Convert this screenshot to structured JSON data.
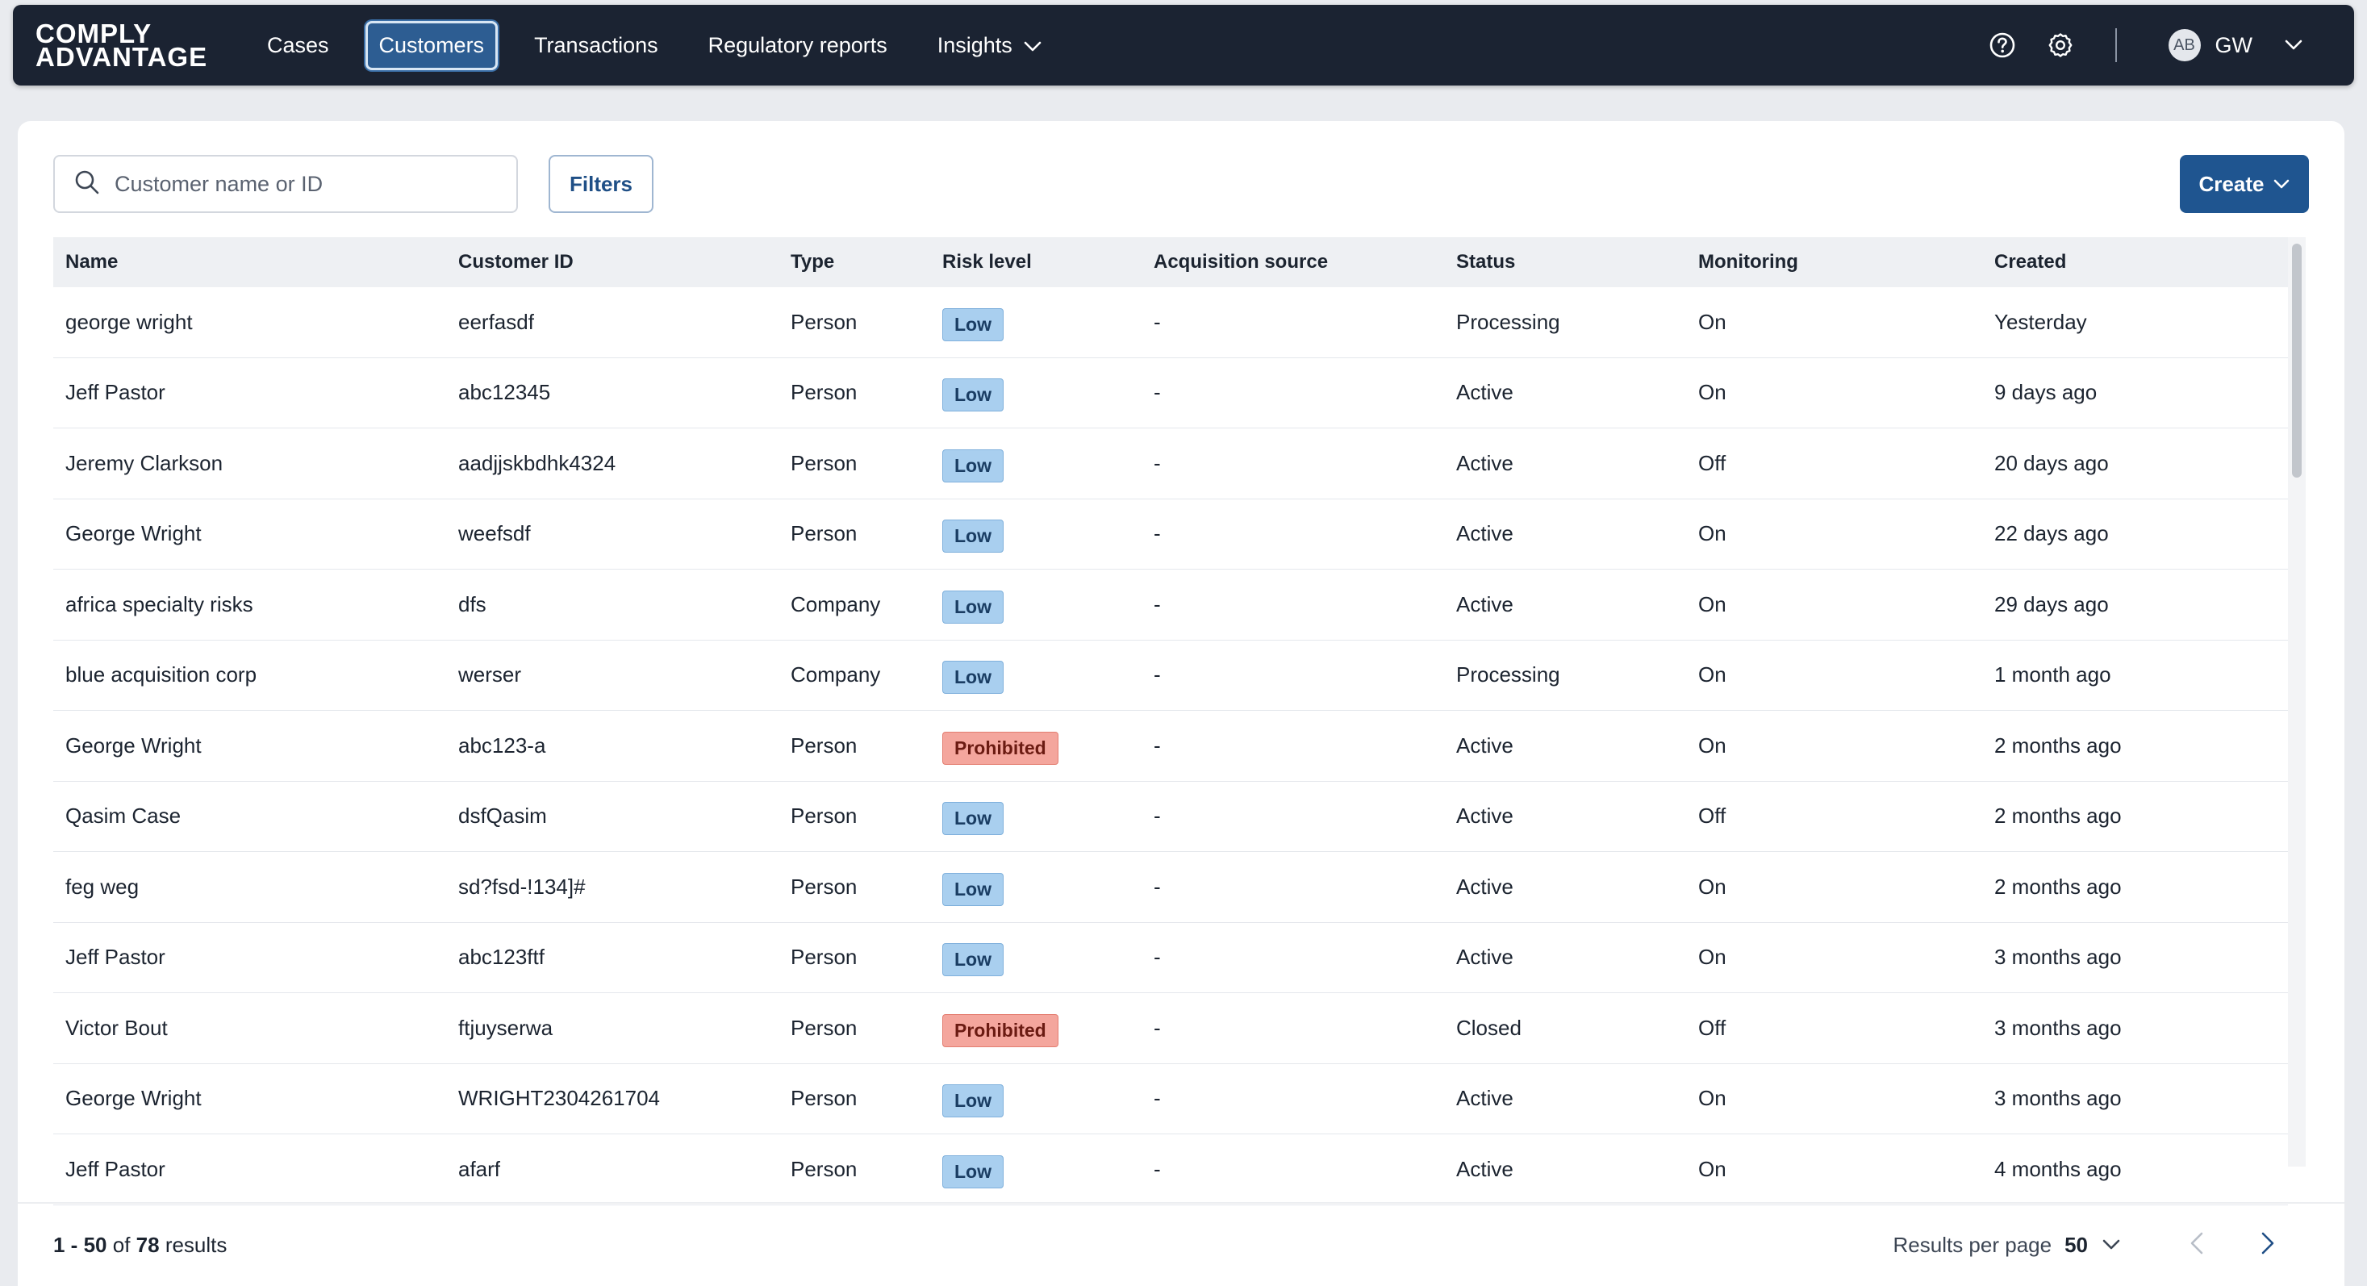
{
  "brand": {
    "line1": "COMPLY",
    "line2": "ADVANTAGE"
  },
  "nav": {
    "items": [
      {
        "label": "Cases"
      },
      {
        "label": "Customers"
      },
      {
        "label": "Transactions"
      },
      {
        "label": "Regulatory reports"
      },
      {
        "label": "Insights"
      }
    ],
    "user": {
      "avatar_initials": "AB",
      "initials": "GW"
    }
  },
  "toolbar": {
    "search_placeholder": "Customer name or ID",
    "filters_label": "Filters",
    "create_label": "Create"
  },
  "table": {
    "columns": [
      "Name",
      "Customer ID",
      "Type",
      "Risk level",
      "Acquisition source",
      "Status",
      "Monitoring",
      "Created"
    ],
    "rows": [
      {
        "name": "george wright",
        "id": "eerfasdf",
        "type": "Person",
        "risk": "Low",
        "acq": "-",
        "status": "Processing",
        "monitoring": "On",
        "created": "Yesterday"
      },
      {
        "name": "Jeff Pastor",
        "id": "abc12345",
        "type": "Person",
        "risk": "Low",
        "acq": "-",
        "status": "Active",
        "monitoring": "On",
        "created": "9 days ago"
      },
      {
        "name": "Jeremy Clarkson",
        "id": "aadjjskbdhk4324",
        "type": "Person",
        "risk": "Low",
        "acq": "-",
        "status": "Active",
        "monitoring": "Off",
        "created": "20 days ago"
      },
      {
        "name": "George Wright",
        "id": "weefsdf",
        "type": "Person",
        "risk": "Low",
        "acq": "-",
        "status": "Active",
        "monitoring": "On",
        "created": "22 days ago"
      },
      {
        "name": "africa specialty risks",
        "id": "dfs",
        "type": "Company",
        "risk": "Low",
        "acq": "-",
        "status": "Active",
        "monitoring": "On",
        "created": "29 days ago"
      },
      {
        "name": "blue acquisition corp",
        "id": "werser",
        "type": "Company",
        "risk": "Low",
        "acq": "-",
        "status": "Processing",
        "monitoring": "On",
        "created": "1 month ago"
      },
      {
        "name": "George Wright",
        "id": "abc123-a",
        "type": "Person",
        "risk": "Prohibited",
        "acq": "-",
        "status": "Active",
        "monitoring": "On",
        "created": "2 months ago"
      },
      {
        "name": "Qasim Case",
        "id": "dsfQasim",
        "type": "Person",
        "risk": "Low",
        "acq": "-",
        "status": "Active",
        "monitoring": "Off",
        "created": "2 months ago"
      },
      {
        "name": "feg weg",
        "id": "sd?fsd-!134]#",
        "type": "Person",
        "risk": "Low",
        "acq": "-",
        "status": "Active",
        "monitoring": "On",
        "created": "2 months ago"
      },
      {
        "name": "Jeff Pastor",
        "id": "abc123ftf",
        "type": "Person",
        "risk": "Low",
        "acq": "-",
        "status": "Active",
        "monitoring": "On",
        "created": "3 months ago"
      },
      {
        "name": "Victor Bout",
        "id": "ftjuyserwa",
        "type": "Person",
        "risk": "Prohibited",
        "acq": "-",
        "status": "Closed",
        "monitoring": "Off",
        "created": "3 months ago"
      },
      {
        "name": "George Wright",
        "id": "WRIGHT2304261704",
        "type": "Person",
        "risk": "Low",
        "acq": "-",
        "status": "Active",
        "monitoring": "On",
        "created": "3 months ago"
      },
      {
        "name": "Jeff Pastor",
        "id": "afarf",
        "type": "Person",
        "risk": "Low",
        "acq": "-",
        "status": "Active",
        "monitoring": "On",
        "created": "4 months ago"
      }
    ]
  },
  "footer": {
    "range": "1 - 50",
    "of_word": "of",
    "total": "78",
    "results_word": "results",
    "per_page_label": "Results per page",
    "per_page_value": "50"
  },
  "colors": {
    "nav_bg": "#1b2332",
    "accent": "#1f5590",
    "badge_low": "#a9cfef",
    "badge_prohibited": "#f4a69d"
  }
}
